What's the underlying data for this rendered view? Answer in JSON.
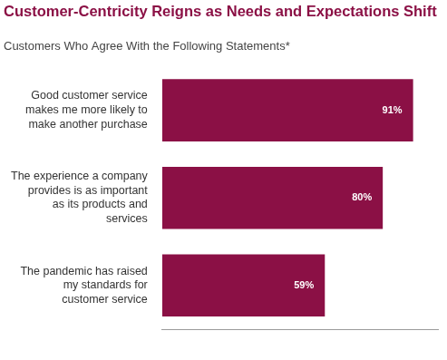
{
  "chart_data": {
    "type": "bar",
    "orientation": "horizontal",
    "title": "Customer-Centricity Reigns as Needs and Expectations Shift",
    "subtitle": "Customers Who Agree With the Following Statements*",
    "categories": [
      "Good customer service makes me more likely to make another purchase",
      "The experience a company provides is as important as its products and services",
      "The pandemic has raised my standards for customer service"
    ],
    "values": [
      91,
      80,
      59
    ],
    "value_labels": [
      "91%",
      "80%",
      "59%"
    ],
    "color": "#8b1045",
    "xlim": [
      0,
      100
    ],
    "grid": false,
    "data_labels": true,
    "tick_labels": "y"
  }
}
